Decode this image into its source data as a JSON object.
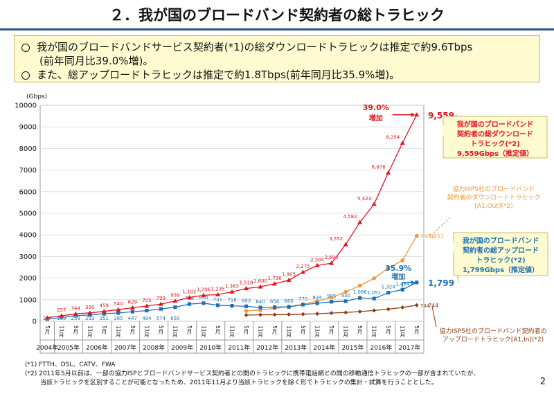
{
  "page": {
    "title": "２．我が国のブロードバンド契約者の総トラヒック",
    "summary": [
      "我が国のブロードバンドサービス契約者(*1)の総ダウンロードトラヒックは推定で約9.6Tbps",
      "(前年同月比39.0%増)。",
      "また、総アップロードトラヒックは推定で約1.8Tbps(前年同月比35.9%増)。"
    ],
    "footnotes": [
      "(*1) FTTH、DSL、CATV、FWA",
      "(*2) 2011年5月以前は、一部の協力ISPとブロードバンドサービス契約者との間のトラヒックに携帯電話網との間の移動通信トラヒックの一部が含まれていたが、",
      "当該トラヒックを区別することが可能となったため、2011年11月より当該トラヒックを除く形でトラヒックの集計・試算を行うこととした。"
    ],
    "page_number": "2"
  },
  "colors": {
    "total_down": "#e0141e",
    "isp_down": "#f0963c",
    "total_up": "#1e6fb4",
    "isp_up": "#8c3c14",
    "accent": "#2f4f8f"
  },
  "chart_data": {
    "type": "line",
    "ylabel": "(Gbps)",
    "ylim": [
      0,
      10000
    ],
    "yticks": [
      0,
      1000,
      2000,
      3000,
      4000,
      5000,
      6000,
      7000,
      8000,
      9000,
      10000
    ],
    "x_period_labels": [
      "5月",
      "11月",
      "5月",
      "11月",
      "5月",
      "11月",
      "5月",
      "11月",
      "5月",
      "11月",
      "5月",
      "11月",
      "5月",
      "11月",
      "5月",
      "11月",
      "5月",
      "11月",
      "5月",
      "11月",
      "5月",
      "11月",
      "5月",
      "11月",
      "5月",
      "11月",
      "5月"
    ],
    "years": [
      "2004年",
      "2005年",
      "2006年",
      "2007年",
      "2008年",
      "2009年",
      "2010年",
      "2011年",
      "2012年",
      "2013年",
      "2014年",
      "2015年",
      "2016年",
      "2017年"
    ],
    "series": [
      {
        "name": "我が国のブロードバンド契約者の総ダウンロードトラヒック(*2)",
        "key": "total_down",
        "values": [
          165,
          257,
          344,
          390,
          459,
          540,
          629,
          705,
          799,
          939,
          1102,
          1206,
          1235,
          1363,
          1518,
          1600,
          1736,
          1905,
          2275,
          2584,
          2690,
          3552,
          4582,
          5423,
          6876,
          8254,
          9559
        ],
        "labels": [
          "",
          "257",
          "344",
          "390",
          "459",
          "540",
          "629",
          "705",
          "799",
          "939",
          "1,102",
          "1,206",
          "1,235",
          "1,363",
          "1,518",
          "1,600",
          "1,736",
          "1,905",
          "2,275",
          "2,584",
          "2,690",
          "3,552",
          "4,582",
          "5,423",
          "6,876",
          "8,254",
          ""
        ]
      },
      {
        "name": "協力ISP5社のブロードバンド契約者のダウンロードトラヒック[A1,Out](*2)",
        "key": "isp_down",
        "values": [
          null,
          null,
          null,
          null,
          null,
          null,
          null,
          null,
          null,
          null,
          null,
          null,
          null,
          null,
          480,
          520,
          600,
          680,
          790,
          940,
          1100,
          1360,
          1650,
          1990,
          2460,
          2820,
          3951
        ],
        "labels": [
          "",
          "",
          "",
          "",
          "",
          "",
          "",
          "",
          "",
          "",
          "",
          "",
          "",
          "",
          "",
          "",
          "",
          "",
          "",
          "",
          "",
          "",
          "",
          "",
          "",
          "",
          "3,951"
        ]
      },
      {
        "name": "我が国のブロードバンド契約者の総アップロードトラヒック(*2)",
        "key": "total_up",
        "values": [
          104,
          169,
          259,
          293,
          351,
          385,
          447,
          494,
          574,
          650,
          799,
          840,
          741,
          718,
          693,
          640,
          658,
          666,
          770,
          834,
          905,
          930,
          1086,
          1051,
          1324,
          1464,
          1799
        ],
        "labels": [
          "104",
          "169",
          "259",
          "293",
          "351",
          "385",
          "447",
          "494",
          "574",
          "650",
          "799",
          "840",
          "741",
          "718",
          "693",
          "640",
          "658",
          "666",
          "770",
          "834",
          "905",
          "930",
          "1,086",
          "1,051",
          "1,324",
          "1,464",
          ""
        ]
      },
      {
        "name": "協力ISP5社のブロードバンド契約者のアップロードトラヒック[A1,In](*2)",
        "key": "isp_up",
        "values": [
          null,
          null,
          null,
          null,
          null,
          null,
          null,
          null,
          null,
          null,
          null,
          null,
          null,
          null,
          290,
          300,
          305,
          315,
          330,
          350,
          380,
          410,
          450,
          500,
          560,
          640,
          744
        ],
        "labels": [
          "",
          "",
          "",
          "",
          "",
          "",
          "",
          "",
          "",
          "",
          "",
          "",
          "",
          "",
          "",
          "",
          "",
          "",
          "",
          "",
          "",
          "",
          "",
          "",
          "",
          "",
          "744"
        ]
      }
    ],
    "end_values": {
      "total_down": "9,559",
      "isp_down": "3,951",
      "total_up": "1,799",
      "isp_up": "744"
    },
    "annotations": {
      "down_growth": "39.0%",
      "down_growth_sub": "増加",
      "up_growth": "35.9%",
      "up_growth_sub": "増加"
    },
    "callouts": {
      "total_down_lines": [
        "我が国のブロードバンド",
        "契約者の総ダウンロード",
        "トラヒック(*2)",
        "9,559Gbps（推定値）"
      ],
      "isp_down_lines": [
        "協力ISP5社のブロードバンド",
        "契約者のダウンロードトラヒック",
        "[A1,Out](*2)"
      ],
      "total_up_lines": [
        "我が国のブロードバンド",
        "契約者の総アップロード",
        "トラヒック(*2)",
        "1,799Gbps（推定値）"
      ],
      "isp_up_lines": [
        "協力ISP5社のブロードバンド契約者の",
        "アップロードトラヒック[A1,In](*2)"
      ]
    }
  }
}
